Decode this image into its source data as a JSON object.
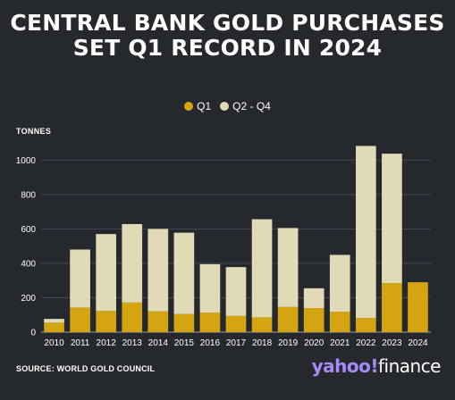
{
  "title": "CENTRAL BANK GOLD PURCHASES SET Q1 RECORD IN 2024",
  "y_unit": "TONNES",
  "source": "SOURCE: WORLD GOLD COUNCIL",
  "brand": {
    "part1": "yahoo!",
    "part2": "finance"
  },
  "colors": {
    "background": "#25292e",
    "q1": "#d4a511",
    "q2q4": "#e0dbb6",
    "grid": "#444a52",
    "brand_purple": "#a78bfa"
  },
  "chart_data": {
    "type": "bar",
    "stacked": true,
    "categories": [
      "2010",
      "2011",
      "2012",
      "2013",
      "2014",
      "2015",
      "2016",
      "2017",
      "2018",
      "2019",
      "2020",
      "2021",
      "2022",
      "2023",
      "2024"
    ],
    "series": [
      {
        "name": "Q1",
        "values": [
          55,
          143,
          123,
          172,
          121,
          105,
          113,
          94,
          86,
          146,
          140,
          118,
          82,
          285,
          290
        ]
      },
      {
        "name": "Q2 - Q4",
        "values": [
          22,
          337,
          447,
          456,
          479,
          473,
          282,
          284,
          570,
          459,
          115,
          331,
          1000,
          752,
          0
        ]
      }
    ],
    "ylim": [
      0,
      1100
    ],
    "yticks": [
      0,
      200,
      400,
      600,
      800,
      1000
    ],
    "ylabel": "TONNES",
    "grid": true,
    "legend": "top-center"
  }
}
